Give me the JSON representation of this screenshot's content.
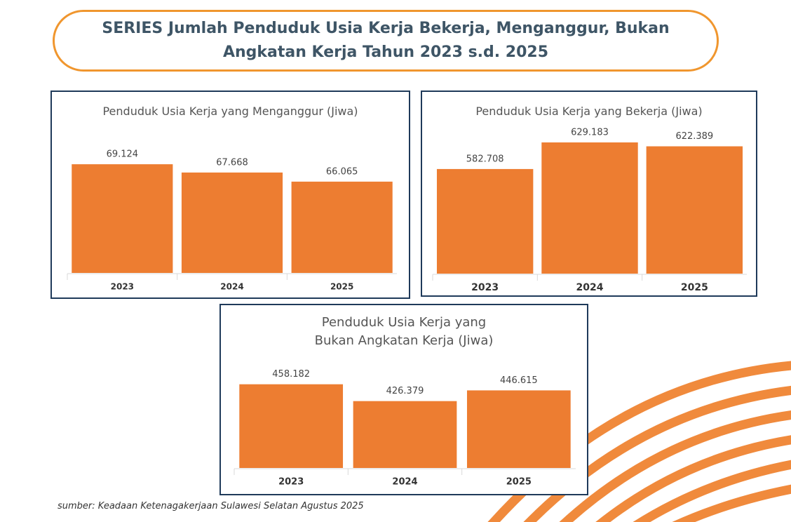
{
  "title": "SERIES Jumlah Penduduk Usia Kerja Bekerja, Menganggur, Bukan Angkatan Kerja Tahun 2023 s.d. 2025",
  "source": "sumber: Keadaan Ketenagakerjaan Sulawesi Selatan Agustus 2025",
  "chart_data": [
    {
      "type": "bar",
      "title": "Penduduk Usia Kerja yang Menganggur (Jiwa)",
      "categories": [
        "2023",
        "2024",
        "2025"
      ],
      "values": [
        69124,
        67668,
        66065
      ],
      "value_labels": [
        "69.124",
        "67.668",
        "66.065"
      ],
      "color": "#ed7d31",
      "ylim": [
        50000,
        70000
      ]
    },
    {
      "type": "bar",
      "title": "Penduduk Usia Kerja yang Bekerja (Jiwa)",
      "categories": [
        "2023",
        "2024",
        "2025"
      ],
      "values": [
        582708,
        629183,
        622389
      ],
      "value_labels": [
        "582.708",
        "629.183",
        "622.389"
      ],
      "color": "#ed7d31",
      "ylim": [
        400000,
        650000
      ]
    },
    {
      "type": "bar",
      "title": "Penduduk Usia Kerja yang Bukan Angkatan Kerja (Jiwa)",
      "categories": [
        "2023",
        "2024",
        "2025"
      ],
      "values": [
        458182,
        426379,
        446615
      ],
      "value_labels": [
        "458.182",
        "426.379",
        "446.615"
      ],
      "color": "#ed7d31",
      "ylim": [
        300000,
        475000
      ]
    }
  ]
}
